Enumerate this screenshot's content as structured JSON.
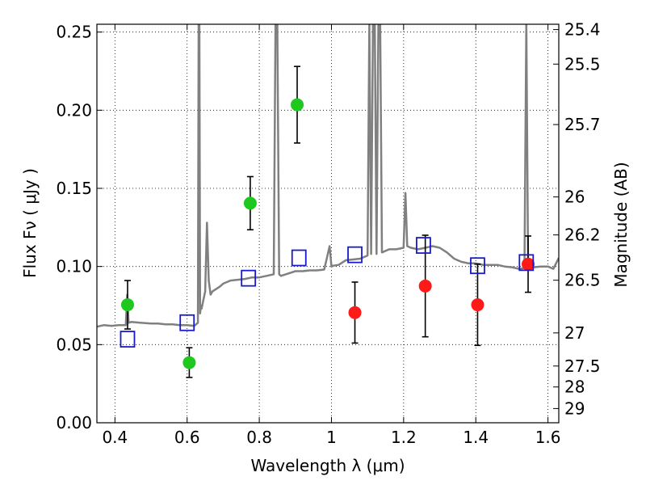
{
  "chart_data": {
    "type": "scatter",
    "xlabel": "Wavelength  λ (μm)",
    "ylabel": "Flux  Fν  ( μJy )",
    "y2label": "Magnitude (AB)",
    "xlim": [
      0.35,
      1.63
    ],
    "ylim": [
      0.0,
      0.255
    ],
    "x_ticks": [
      0.4,
      0.6,
      0.8,
      1.0,
      1.2,
      1.4,
      1.6
    ],
    "x_tick_labels": [
      "0.4",
      "0.6",
      "0.8",
      "1",
      "1.2",
      "1.4",
      "1.6"
    ],
    "y_ticks": [
      0.0,
      0.05,
      0.1,
      0.15,
      0.2,
      0.25
    ],
    "y_tick_labels": [
      "0.00",
      "0.05",
      "0.10",
      "0.15",
      "0.20",
      "0.25"
    ],
    "magnitude_ticks": [
      {
        "label": "25.4",
        "flux": 0.2516
      },
      {
        "label": "25.5",
        "flux": 0.2295
      },
      {
        "label": "25.7",
        "flux": 0.1908
      },
      {
        "label": "26",
        "flux": 0.1445
      },
      {
        "label": "26.2",
        "flux": 0.1202
      },
      {
        "label": "26.5",
        "flux": 0.0912
      },
      {
        "label": "27",
        "flux": 0.0575
      },
      {
        "label": "27.5",
        "flux": 0.0363
      },
      {
        "label": "28",
        "flux": 0.0229
      },
      {
        "label": "29",
        "flux": 0.0091
      }
    ],
    "grid": true,
    "series": [
      {
        "marker": "circle",
        "color": "#1ec81e",
        "points": [
          {
            "x": 0.435,
            "y": 0.0755,
            "yerr": 0.0155
          },
          {
            "x": 0.606,
            "y": 0.0385,
            "yerr": 0.0095
          },
          {
            "x": 0.775,
            "y": 0.1405,
            "yerr": 0.017
          },
          {
            "x": 0.905,
            "y": 0.2035,
            "yerr": 0.0245
          }
        ]
      },
      {
        "marker": "circle",
        "color": "#ff1a1a",
        "points": [
          {
            "x": 1.065,
            "y": 0.0705,
            "yerr": 0.0195
          },
          {
            "x": 1.26,
            "y": 0.0875,
            "yerr": 0.0325
          },
          {
            "x": 1.405,
            "y": 0.0755,
            "yerr": 0.026
          },
          {
            "x": 1.545,
            "y": 0.1015,
            "yerr": 0.018
          }
        ]
      },
      {
        "marker": "square",
        "color": "#1a1acc",
        "points": [
          {
            "x": 0.435,
            "y": 0.0535
          },
          {
            "x": 0.6,
            "y": 0.064
          },
          {
            "x": 0.77,
            "y": 0.0925
          },
          {
            "x": 0.91,
            "y": 0.1055
          },
          {
            "x": 1.065,
            "y": 0.1075
          },
          {
            "x": 1.255,
            "y": 0.1135
          },
          {
            "x": 1.405,
            "y": 0.1005
          },
          {
            "x": 1.54,
            "y": 0.1025
          }
        ]
      }
    ],
    "spectrum": {
      "color": "#808080",
      "x": [
        0.35,
        0.37,
        0.39,
        0.41,
        0.425,
        0.43,
        0.434,
        0.438,
        0.445,
        0.47,
        0.5,
        0.52,
        0.54,
        0.56,
        0.58,
        0.6,
        0.62,
        0.63,
        0.632,
        0.634,
        0.636,
        0.638,
        0.64,
        0.65,
        0.655,
        0.66,
        0.665,
        0.67,
        0.69,
        0.7,
        0.72,
        0.74,
        0.76,
        0.78,
        0.8,
        0.82,
        0.84,
        0.845,
        0.85,
        0.855,
        0.86,
        0.88,
        0.9,
        0.92,
        0.94,
        0.96,
        0.98,
        0.995,
        1.0,
        1.005,
        1.02,
        1.04,
        1.06,
        1.08,
        1.1,
        1.105,
        1.11,
        1.115,
        1.12,
        1.125,
        1.13,
        1.135,
        1.14,
        1.16,
        1.18,
        1.2,
        1.205,
        1.21,
        1.22,
        1.24,
        1.26,
        1.28,
        1.3,
        1.32,
        1.34,
        1.36,
        1.38,
        1.4,
        1.42,
        1.44,
        1.46,
        1.48,
        1.5,
        1.52,
        1.535,
        1.54,
        1.545,
        1.55,
        1.56,
        1.58,
        1.6,
        1.615,
        1.63
      ],
      "y": [
        0.0615,
        0.0625,
        0.062,
        0.0625,
        0.0625,
        0.0625,
        0.082,
        0.064,
        0.0645,
        0.064,
        0.0635,
        0.0635,
        0.063,
        0.063,
        0.0625,
        0.0625,
        0.062,
        0.064,
        0.257,
        0.257,
        0.07,
        0.075,
        0.073,
        0.084,
        0.128,
        0.091,
        0.082,
        0.084,
        0.087,
        0.089,
        0.091,
        0.0915,
        0.092,
        0.093,
        0.093,
        0.094,
        0.095,
        0.257,
        0.257,
        0.095,
        0.094,
        0.0955,
        0.097,
        0.097,
        0.0975,
        0.0975,
        0.098,
        0.113,
        0.1,
        0.1005,
        0.101,
        0.104,
        0.1045,
        0.105,
        0.107,
        0.257,
        0.108,
        0.257,
        0.257,
        0.108,
        0.257,
        0.257,
        0.109,
        0.111,
        0.111,
        0.112,
        0.147,
        0.113,
        0.112,
        0.111,
        0.112,
        0.113,
        0.112,
        0.109,
        0.105,
        0.103,
        0.102,
        0.102,
        0.101,
        0.101,
        0.101,
        0.1,
        0.0995,
        0.0985,
        0.099,
        0.257,
        0.099,
        0.1,
        0.0995,
        0.1,
        0.1,
        0.0985,
        0.1055
      ]
    }
  }
}
